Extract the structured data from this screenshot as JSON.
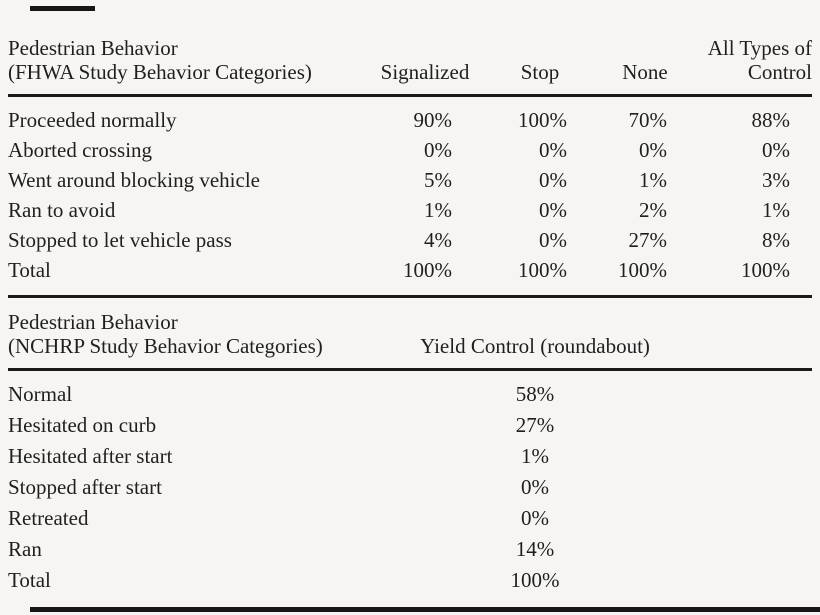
{
  "page": {
    "background_color": "#f6f5f3",
    "text_color": "#1f1f1f",
    "rule_color": "#1a1a1a"
  },
  "table1": {
    "header": {
      "label_line1": "Pedestrian Behavior",
      "label_line2": "(FHWA Study Behavior Categories)",
      "columns": [
        "Signalized",
        "Stop",
        "None",
        "All Types of Control"
      ]
    },
    "rows": [
      {
        "label": "Proceeded normally",
        "values": [
          "90%",
          "100%",
          "70%",
          "88%"
        ]
      },
      {
        "label": "Aborted crossing",
        "values": [
          "0%",
          "0%",
          "0%",
          "0%"
        ]
      },
      {
        "label": "Went around blocking vehicle",
        "values": [
          "5%",
          "0%",
          "1%",
          "3%"
        ]
      },
      {
        "label": "Ran to avoid",
        "values": [
          "1%",
          "0%",
          "2%",
          "1%"
        ]
      },
      {
        "label": "Stopped to let vehicle pass",
        "values": [
          "4%",
          "0%",
          "27%",
          "8%"
        ]
      },
      {
        "label": "Total",
        "values": [
          "100%",
          "100%",
          "100%",
          "100%"
        ]
      }
    ]
  },
  "table2": {
    "header": {
      "label_line1": "Pedestrian Behavior",
      "label_line2": "(NCHRP Study Behavior Categories)",
      "column": "Yield Control (roundabout)"
    },
    "rows": [
      {
        "label": "Normal",
        "value": "58%"
      },
      {
        "label": "Hesitated on curb",
        "value": "27%"
      },
      {
        "label": "Hesitated after start",
        "value": "1%"
      },
      {
        "label": "Stopped after start",
        "value": "0%"
      },
      {
        "label": "Retreated",
        "value": "0%"
      },
      {
        "label": "Ran",
        "value": "14%"
      },
      {
        "label": "Total",
        "value": "100%"
      }
    ]
  }
}
